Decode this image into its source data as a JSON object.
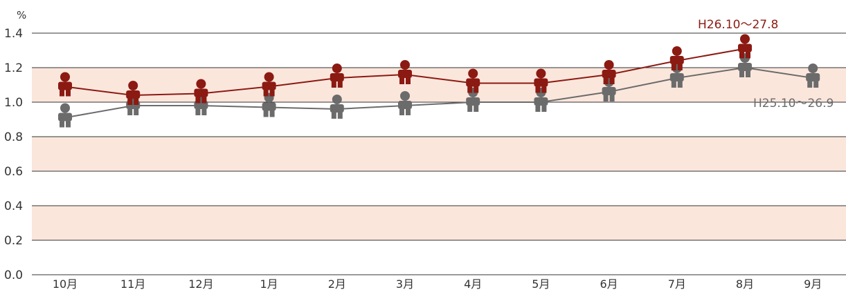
{
  "chart_data": {
    "type": "line",
    "title": "",
    "xlabel": "",
    "ylabel": "",
    "y_unit": "%",
    "ylim": [
      0.0,
      1.4
    ],
    "yticks": [
      "0.0",
      "0.2",
      "0.4",
      "0.6",
      "0.8",
      "1.0",
      "1.2",
      "1.4"
    ],
    "categories": [
      "10月",
      "11月",
      "12月",
      "1月",
      "2月",
      "3月",
      "4月",
      "5月",
      "6月",
      "7月",
      "8月",
      "9月"
    ],
    "bands": [
      [
        0.2,
        0.4
      ],
      [
        0.6,
        0.8
      ],
      [
        1.0,
        1.2
      ]
    ],
    "series": [
      {
        "name": "H26.10～27.8",
        "color": "#8b1a12",
        "values": [
          1.09,
          1.04,
          1.05,
          1.09,
          1.14,
          1.16,
          1.11,
          1.11,
          1.16,
          1.24,
          1.31,
          null
        ]
      },
      {
        "name": "H25.10～26.9",
        "color": "#6b6b6b",
        "values": [
          0.91,
          0.98,
          0.98,
          0.97,
          0.96,
          0.98,
          1.0,
          1.0,
          1.06,
          1.14,
          1.2,
          1.14
        ]
      }
    ],
    "colors": {
      "band": "#fbe6dc",
      "grid": "#333333",
      "axis": "#333333"
    },
    "marker_icon": "person-icon"
  }
}
